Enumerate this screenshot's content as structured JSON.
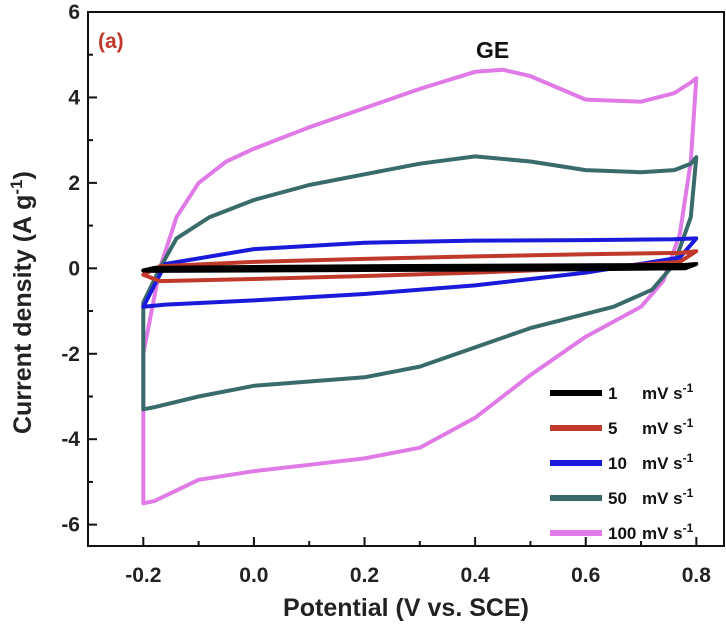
{
  "chart_data": {
    "type": "line",
    "panel_label": "(a)",
    "title": "GE",
    "xlabel": "Potential (V vs. SCE)",
    "ylabel_main": "Current density (A g",
    "ylabel_sup": "-1",
    "ylabel_end": ")",
    "xlim": [
      -0.3,
      0.85
    ],
    "ylim": [
      -6.5,
      6
    ],
    "x_ticks": [
      -0.2,
      0.0,
      0.2,
      0.4,
      0.6,
      0.8
    ],
    "x_tick_labels": [
      "-0.2",
      "0.0",
      "0.2",
      "0.4",
      "0.6",
      "0.8"
    ],
    "y_ticks": [
      -6,
      -4,
      -2,
      0,
      2,
      4,
      6
    ],
    "y_tick_labels": [
      "-6",
      "-4",
      "-2",
      "0",
      "2",
      "4",
      "6"
    ],
    "grid": false,
    "legend_position": "bottom-right",
    "series": [
      {
        "name": "1",
        "unit_main": "mV s",
        "unit_sup": "-1",
        "color": "#000000",
        "x": [
          -0.2,
          -0.18,
          0.0,
          0.2,
          0.4,
          0.6,
          0.78,
          0.8,
          0.78,
          0.6,
          0.4,
          0.2,
          0.0,
          -0.18,
          -0.2
        ],
        "y": [
          -0.05,
          0.01,
          0.03,
          0.05,
          0.06,
          0.07,
          0.08,
          0.1,
          0.0,
          -0.02,
          -0.03,
          -0.04,
          -0.05,
          -0.06,
          -0.05
        ]
      },
      {
        "name": "5",
        "unit_main": "mV s",
        "unit_sup": "-1",
        "color": "#c0392b",
        "x": [
          -0.2,
          -0.17,
          0.0,
          0.2,
          0.4,
          0.6,
          0.77,
          0.8,
          0.77,
          0.6,
          0.4,
          0.2,
          0.0,
          -0.17,
          -0.2
        ],
        "y": [
          -0.15,
          0.05,
          0.15,
          0.22,
          0.28,
          0.33,
          0.36,
          0.4,
          0.15,
          0.0,
          -0.1,
          -0.18,
          -0.25,
          -0.3,
          -0.15
        ]
      },
      {
        "name": "10",
        "unit_main": "mV s",
        "unit_sup": "-1",
        "color": "#1a1adc",
        "x": [
          -0.2,
          -0.16,
          0.0,
          0.2,
          0.4,
          0.6,
          0.76,
          0.8,
          0.77,
          0.6,
          0.4,
          0.2,
          0.0,
          -0.16,
          -0.2
        ],
        "y": [
          -0.9,
          0.1,
          0.45,
          0.6,
          0.65,
          0.66,
          0.68,
          0.7,
          0.25,
          -0.1,
          -0.4,
          -0.6,
          -0.75,
          -0.85,
          -0.9
        ]
      },
      {
        "name": "50",
        "unit_main": "mV s",
        "unit_sup": "-1",
        "color": "#3a6b6b",
        "x": [
          -0.2,
          -0.17,
          -0.14,
          -0.08,
          0.0,
          0.1,
          0.2,
          0.3,
          0.4,
          0.5,
          0.6,
          0.7,
          0.76,
          0.79,
          0.8,
          0.79,
          0.76,
          0.72,
          0.65,
          0.5,
          0.4,
          0.3,
          0.2,
          0.1,
          0.0,
          -0.1,
          -0.18,
          -0.2
        ],
        "y": [
          -0.8,
          0.0,
          0.7,
          1.2,
          1.6,
          1.95,
          2.2,
          2.45,
          2.62,
          2.5,
          2.3,
          2.25,
          2.3,
          2.45,
          2.6,
          1.2,
          0.1,
          -0.5,
          -0.9,
          -1.4,
          -1.85,
          -2.3,
          -2.55,
          -2.65,
          -2.75,
          -3.0,
          -3.25,
          -3.3
        ]
      },
      {
        "name": "100",
        "unit_main": "mV s",
        "unit_sup": "-1",
        "color": "#e07ae6",
        "x": [
          -0.2,
          -0.17,
          -0.14,
          -0.1,
          -0.05,
          0.0,
          0.1,
          0.2,
          0.3,
          0.4,
          0.45,
          0.5,
          0.6,
          0.7,
          0.76,
          0.79,
          0.8,
          0.79,
          0.77,
          0.74,
          0.7,
          0.6,
          0.5,
          0.4,
          0.3,
          0.2,
          0.1,
          0.0,
          -0.1,
          -0.18,
          -0.2
        ],
        "y": [
          -2.0,
          0.0,
          1.2,
          2.0,
          2.5,
          2.8,
          3.3,
          3.75,
          4.2,
          4.6,
          4.65,
          4.5,
          3.95,
          3.9,
          4.1,
          4.35,
          4.45,
          2.5,
          0.8,
          -0.3,
          -0.9,
          -1.6,
          -2.5,
          -3.5,
          -4.2,
          -4.45,
          -4.6,
          -4.75,
          -4.95,
          -5.45,
          -5.5
        ]
      }
    ]
  }
}
